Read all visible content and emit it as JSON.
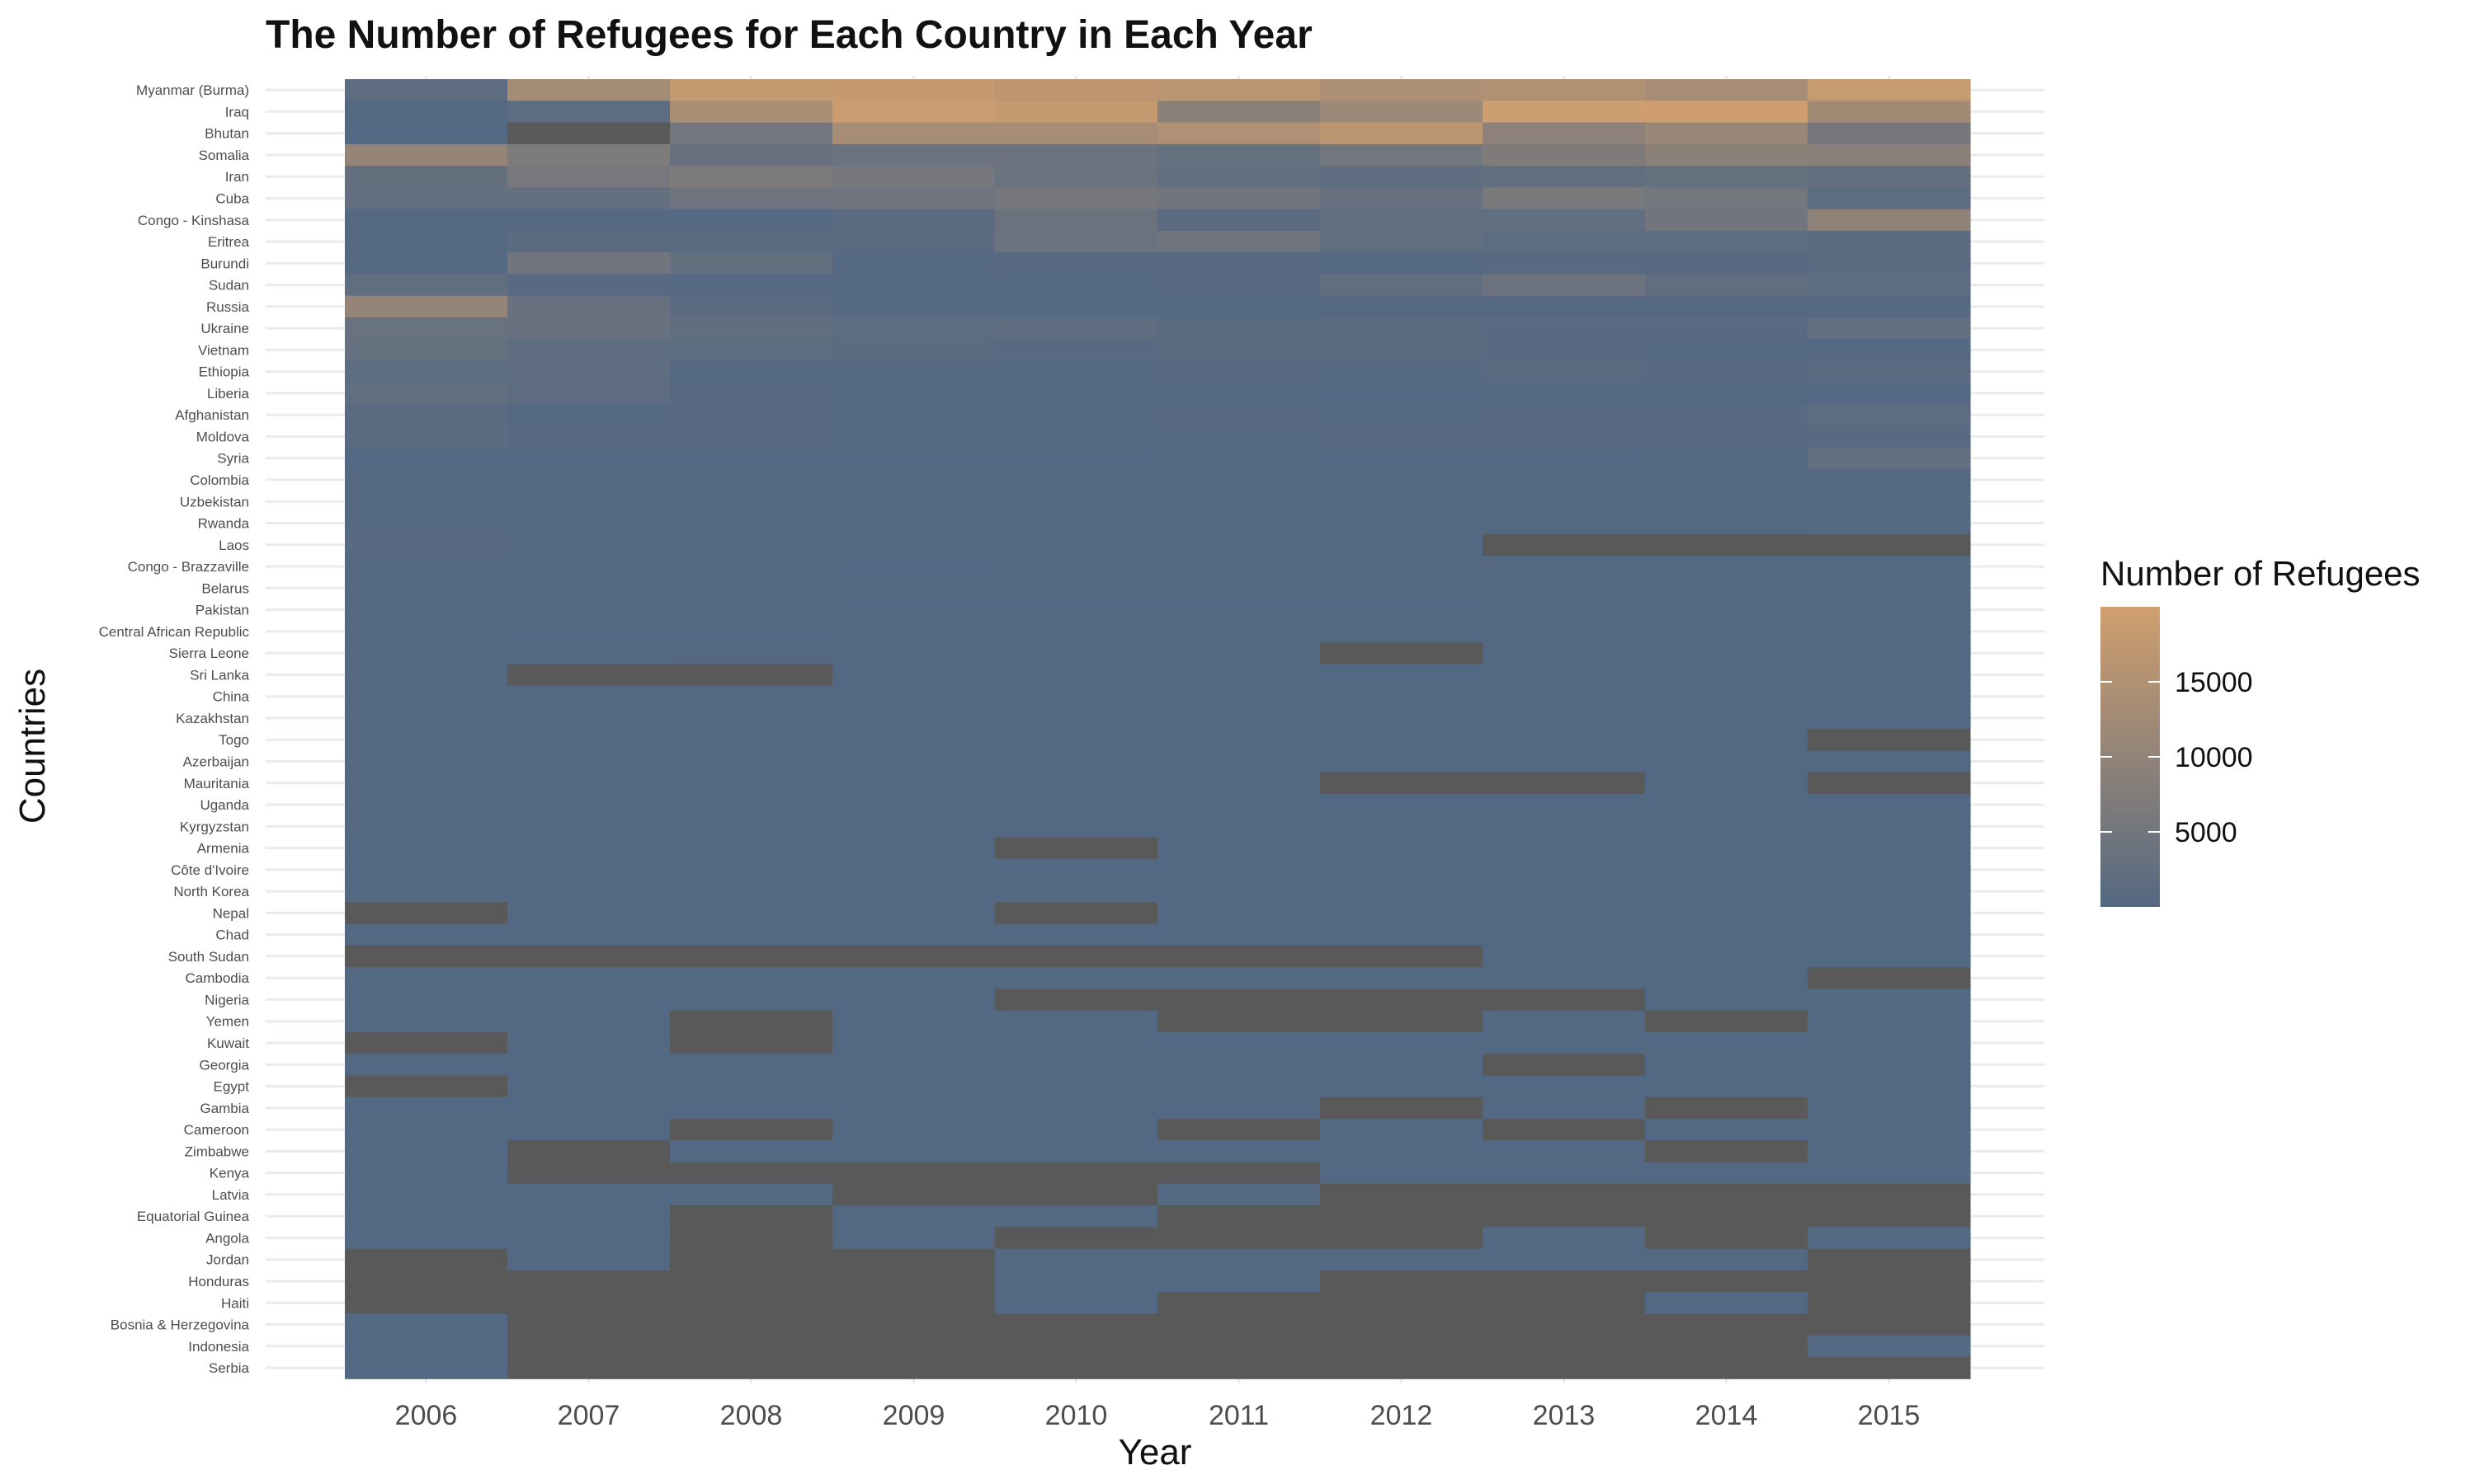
{
  "chart_data": {
    "type": "heatmap",
    "title": "The Number of Refugees for Each Country in Each Year",
    "xlabel": "Year",
    "ylabel": "Countries",
    "x": [
      "2006",
      "2007",
      "2008",
      "2009",
      "2010",
      "2011",
      "2012",
      "2013",
      "2014",
      "2015"
    ],
    "y": [
      "Myanmar (Burma)",
      "Iraq",
      "Bhutan",
      "Somalia",
      "Iran",
      "Cuba",
      "Congo - Kinshasa",
      "Eritrea",
      "Burundi",
      "Sudan",
      "Russia",
      "Ukraine",
      "Vietnam",
      "Ethiopia",
      "Liberia",
      "Afghanistan",
      "Moldova",
      "Syria",
      "Colombia",
      "Uzbekistan",
      "Rwanda",
      "Laos",
      "Congo - Brazzaville",
      "Belarus",
      "Pakistan",
      "Central African Republic",
      "Sierra Leone",
      "Sri Lanka",
      "China",
      "Kazakhstan",
      "Togo",
      "Azerbaijan",
      "Mauritania",
      "Uganda",
      "Kyrgyzstan",
      "Armenia",
      "Côte d'Ivoire",
      "North Korea",
      "Nepal",
      "Chad",
      "South Sudan",
      "Cambodia",
      "Nigeria",
      "Yemen",
      "Kuwait",
      "Georgia",
      "Egypt",
      "Gambia",
      "Cameroon",
      "Zimbabwe",
      "Kenya",
      "Latvia",
      "Equatorial Guinea",
      "Angola",
      "Jordan",
      "Honduras",
      "Haiti",
      "Bosnia & Herzegovina",
      "Indonesia",
      "Serbia"
    ],
    "values": [
      [
        1600,
        13000,
        18000,
        18200,
        16900,
        16400,
        14500,
        15000,
        13500,
        18400
      ],
      [
        200,
        1500,
        13800,
        19000,
        18000,
        9000,
        11700,
        19500,
        19600,
        12600
      ],
      [
        0,
        null,
        5000,
        13500,
        13500,
        15000,
        16800,
        9200,
        11000,
        5600
      ],
      [
        10500,
        6800,
        3000,
        4000,
        4000,
        3100,
        5000,
        7000,
        9000,
        8800
      ],
      [
        2800,
        5800,
        6800,
        5500,
        3500,
        2500,
        1900,
        2600,
        3100,
        2700
      ],
      [
        2700,
        2700,
        4200,
        4400,
        5500,
        4800,
        3000,
        6000,
        5000,
        1500
      ],
      [
        500,
        400,
        300,
        1200,
        3700,
        1100,
        2100,
        2400,
        4900,
        9500
      ],
      [
        400,
        1100,
        1000,
        1100,
        3900,
        4400,
        2300,
        1400,
        1500,
        1300
      ],
      [
        500,
        4900,
        2900,
        500,
        700,
        600,
        300,
        600,
        800,
        900
      ],
      [
        2000,
        800,
        450,
        400,
        500,
        800,
        2000,
        4100,
        2100,
        1500
      ],
      [
        10500,
        3300,
        1200,
        400,
        200,
        200,
        100,
        100,
        100,
        300
      ],
      [
        3500,
        3300,
        2300,
        1400,
        1800,
        900,
        900,
        700,
        600,
        2400
      ],
      [
        3100,
        1800,
        1500,
        1300,
        700,
        900,
        1100,
        600,
        400,
        400
      ],
      [
        1500,
        1700,
        500,
        400,
        500,
        600,
        500,
        900,
        700,
        900
      ],
      [
        2200,
        1600,
        600,
        500,
        250,
        50,
        50,
        50,
        40,
        50
      ],
      [
        900,
        300,
        600,
        300,
        500,
        600,
        300,
        600,
        800,
        1500
      ],
      [
        1200,
        800,
        800,
        500,
        500,
        400,
        800,
        700,
        600,
        800
      ],
      [
        40,
        40,
        30,
        40,
        40,
        80,
        50,
        50,
        200,
        2500
      ],
      [
        400,
        300,
        400,
        300,
        400,
        400,
        200,
        200,
        150,
        100
      ],
      [
        100,
        500,
        500,
        300,
        300,
        200,
        300,
        200,
        200,
        300
      ],
      [
        300,
        300,
        200,
        100,
        100,
        100,
        100,
        100,
        100,
        300
      ],
      [
        800,
        200,
        50,
        50,
        50,
        50,
        50,
        null,
        null,
        null
      ],
      [
        100,
        100,
        100,
        50,
        100,
        100,
        100,
        100,
        100,
        200
      ],
      [
        300,
        200,
        200,
        100,
        100,
        100,
        100,
        100,
        100,
        100
      ],
      [
        100,
        100,
        100,
        50,
        50,
        50,
        50,
        100,
        100,
        100
      ],
      [
        100,
        50,
        50,
        50,
        50,
        50,
        50,
        100,
        100,
        100
      ],
      [
        300,
        200,
        100,
        50,
        50,
        50,
        null,
        50,
        50,
        50
      ],
      [
        100,
        null,
        null,
        50,
        50,
        50,
        50,
        50,
        50,
        50
      ],
      [
        100,
        100,
        100,
        50,
        50,
        50,
        50,
        50,
        50,
        50
      ],
      [
        100,
        100,
        100,
        50,
        50,
        50,
        50,
        50,
        50,
        50
      ],
      [
        100,
        100,
        100,
        50,
        50,
        50,
        50,
        50,
        50,
        null
      ],
      [
        100,
        100,
        100,
        50,
        50,
        50,
        50,
        50,
        50,
        50
      ],
      [
        100,
        100,
        100,
        50,
        50,
        50,
        null,
        null,
        50,
        null
      ],
      [
        100,
        100,
        100,
        50,
        50,
        50,
        50,
        50,
        50,
        50
      ],
      [
        100,
        50,
        50,
        50,
        50,
        50,
        50,
        50,
        50,
        50
      ],
      [
        50,
        50,
        50,
        50,
        null,
        50,
        50,
        50,
        50,
        50
      ],
      [
        50,
        50,
        50,
        50,
        50,
        50,
        50,
        50,
        50,
        50
      ],
      [
        50,
        50,
        50,
        50,
        50,
        50,
        50,
        50,
        50,
        50
      ],
      [
        null,
        50,
        50,
        50,
        null,
        50,
        50,
        50,
        50,
        50
      ],
      [
        50,
        50,
        50,
        50,
        50,
        50,
        50,
        50,
        50,
        50
      ],
      [
        null,
        null,
        null,
        null,
        null,
        null,
        null,
        50,
        50,
        50
      ],
      [
        50,
        50,
        50,
        50,
        50,
        50,
        50,
        50,
        50,
        null
      ],
      [
        50,
        50,
        50,
        50,
        null,
        null,
        null,
        null,
        50,
        50
      ],
      [
        50,
        50,
        null,
        50,
        50,
        null,
        null,
        50,
        null,
        50
      ],
      [
        null,
        50,
        null,
        50,
        50,
        50,
        50,
        50,
        50,
        50
      ],
      [
        50,
        50,
        50,
        50,
        50,
        50,
        50,
        null,
        50,
        50
      ],
      [
        null,
        50,
        50,
        50,
        50,
        50,
        50,
        50,
        50,
        50
      ],
      [
        50,
        50,
        50,
        50,
        50,
        50,
        null,
        50,
        null,
        50
      ],
      [
        50,
        50,
        null,
        50,
        50,
        null,
        50,
        null,
        50,
        50
      ],
      [
        50,
        null,
        50,
        50,
        50,
        50,
        50,
        50,
        null,
        50
      ],
      [
        50,
        null,
        null,
        null,
        null,
        null,
        50,
        50,
        50,
        50
      ],
      [
        50,
        50,
        50,
        null,
        null,
        50,
        null,
        null,
        null,
        null
      ],
      [
        50,
        50,
        null,
        50,
        50,
        null,
        null,
        null,
        null,
        null
      ],
      [
        50,
        50,
        null,
        50,
        null,
        null,
        null,
        50,
        null,
        50
      ],
      [
        null,
        50,
        null,
        null,
        50,
        50,
        50,
        50,
        50,
        null
      ],
      [
        null,
        null,
        null,
        null,
        50,
        50,
        null,
        null,
        null,
        null
      ],
      [
        null,
        null,
        null,
        null,
        50,
        null,
        null,
        null,
        50,
        null
      ],
      [
        50,
        null,
        null,
        null,
        null,
        null,
        null,
        null,
        null,
        null
      ],
      [
        50,
        null,
        null,
        null,
        null,
        null,
        null,
        null,
        null,
        50
      ],
      [
        50,
        null,
        null,
        null,
        null,
        null,
        null,
        null,
        null,
        null
      ]
    ],
    "missing_value_color": "#595959",
    "colorscale": {
      "low": "#536882",
      "high": "#d09f6e",
      "min": 0,
      "max": 20000
    },
    "legend": {
      "title": "Number of Refugees",
      "ticks": [
        "5000",
        "10000",
        "15000"
      ],
      "placement": "right"
    },
    "grid": true
  }
}
